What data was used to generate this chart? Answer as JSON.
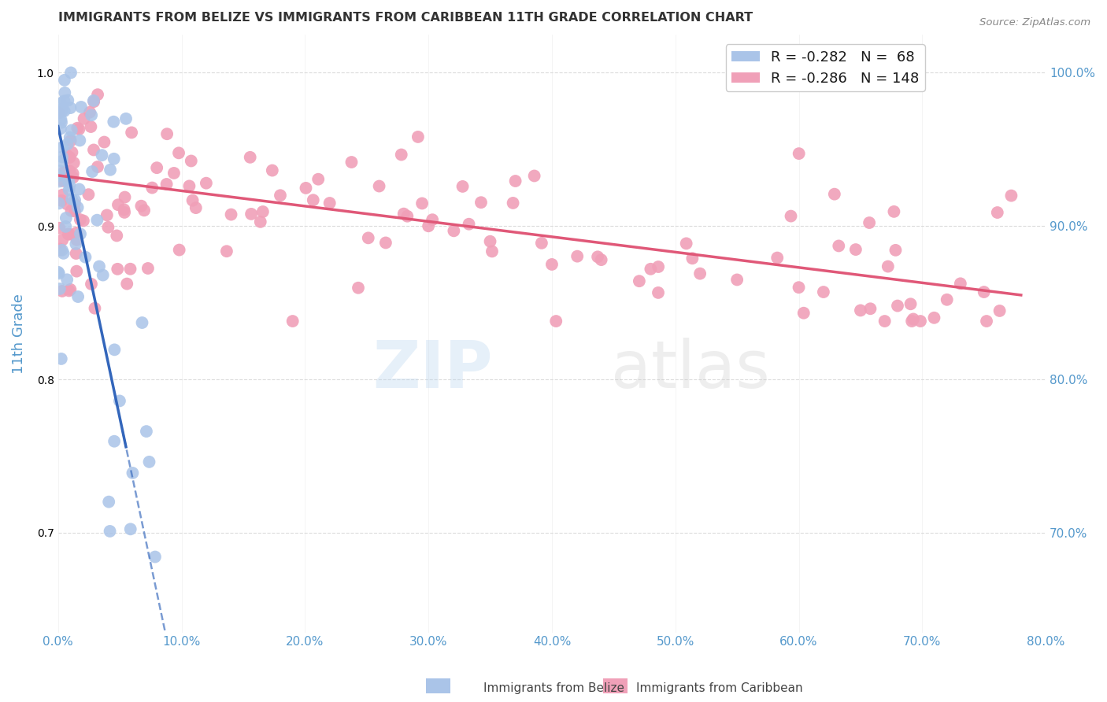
{
  "title": "IMMIGRANTS FROM BELIZE VS IMMIGRANTS FROM CARIBBEAN 11TH GRADE CORRELATION CHART",
  "source": "Source: ZipAtlas.com",
  "ylabel": "11th Grade",
  "belize_color": "#aac4e8",
  "caribbean_color": "#f0a0b8",
  "belize_line_color": "#3366bb",
  "caribbean_line_color": "#e05878",
  "belize_R": -0.282,
  "belize_N": 68,
  "caribbean_R": -0.286,
  "caribbean_N": 148,
  "xmin": 0.0,
  "xmax": 0.8,
  "ymin": 0.635,
  "ymax": 1.025,
  "watermark_zip": "ZIP",
  "watermark_atlas": "atlas",
  "background_color": "#ffffff",
  "grid_color": "#d8d8d8",
  "title_color": "#333333",
  "axis_label_color": "#5599cc",
  "tick_color": "#5599cc",
  "legend_box_color": "#ffffff",
  "legend_edge_color": "#cccccc"
}
